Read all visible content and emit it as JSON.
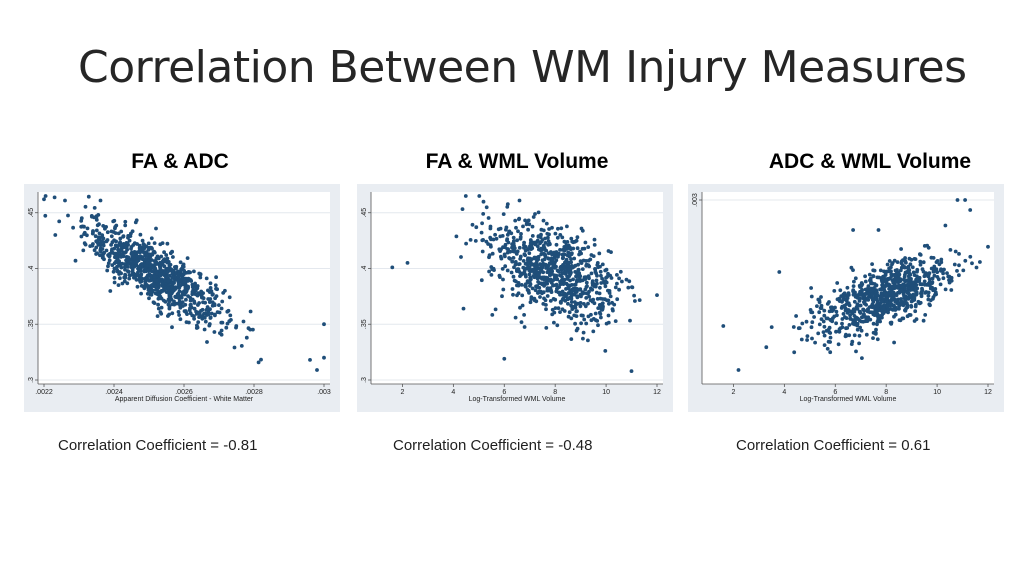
{
  "slide": {
    "title": "Correlation Between WM Injury Measures"
  },
  "panels": [
    {
      "title": "FA & ADC",
      "correlation_text": "Correlation Coefficient = -0.81"
    },
    {
      "title": "FA & WML Volume",
      "correlation_text": "Correlation Coefficient = -0.48"
    },
    {
      "title": "ADC & WML Volume",
      "correlation_text": "Correlation Coefficient = 0.61"
    }
  ],
  "colors": {
    "point": "#1f4e79",
    "panel_bg": "#e9edf2",
    "plot_bg": "#ffffff",
    "grid": "#e4e8ee"
  },
  "chart_data": [
    {
      "type": "scatter",
      "title": "FA & ADC",
      "xlabel": "Apparent Diffusion Coefficient - White Matter",
      "ylabel": "",
      "xlim": [
        0.0022,
        0.003
      ],
      "ylim": [
        0.3,
        0.465
      ],
      "xticks": [
        ".0022",
        ".0024",
        ".0026",
        ".0028",
        ".003"
      ],
      "xtick_values": [
        0.0022,
        0.0024,
        0.0026,
        0.0028,
        0.003
      ],
      "yticks": [
        ".3",
        ".35",
        ".4",
        ".45"
      ],
      "ytick_values": [
        0.3,
        0.35,
        0.4,
        0.45
      ],
      "grid": true,
      "correlation": -0.81,
      "n_points": 900,
      "x_mean": 0.00252,
      "x_sd": 0.0001,
      "y_mean": 0.395,
      "y_sd": 0.022,
      "outliers": [
        [
          0.00226,
          0.461
        ],
        [
          0.00229,
          0.407
        ],
        [
          0.00296,
          0.318
        ],
        [
          0.00302,
          0.32
        ],
        [
          0.00302,
          0.35
        ],
        [
          0.00298,
          0.309
        ]
      ]
    },
    {
      "type": "scatter",
      "title": "FA & WML Volume",
      "xlabel": "Log-Transformed WML Volume",
      "ylabel": "",
      "xlim": [
        1,
        12
      ],
      "ylim": [
        0.3,
        0.465
      ],
      "xticks": [
        "2",
        "4",
        "6",
        "8",
        "10",
        "12"
      ],
      "xtick_values": [
        2,
        4,
        6,
        8,
        10,
        12
      ],
      "yticks": [
        ".3",
        ".35",
        ".4",
        ".45"
      ],
      "ytick_values": [
        0.3,
        0.35,
        0.4,
        0.45
      ],
      "grid": true,
      "correlation": -0.48,
      "n_points": 800,
      "x_mean": 7.9,
      "x_sd": 1.3,
      "y_mean": 0.396,
      "y_sd": 0.023,
      "outliers": [
        [
          1.6,
          0.401
        ],
        [
          2.2,
          0.405
        ],
        [
          6.6,
          0.461
        ],
        [
          11.0,
          0.308
        ],
        [
          6.0,
          0.319
        ],
        [
          4.4,
          0.364
        ]
      ]
    },
    {
      "type": "scatter",
      "title": "ADC & WML Volume",
      "xlabel": "Log-Transformed WML Volume",
      "ylabel": "",
      "xlim": [
        1,
        12
      ],
      "ylim": [
        0.0021,
        0.00302
      ],
      "xticks": [
        "2",
        "4",
        "6",
        "8",
        "10",
        "12"
      ],
      "xtick_values": [
        2,
        4,
        6,
        8,
        10,
        12
      ],
      "yticks": [
        ".003"
      ],
      "ytick_values": [
        0.003
      ],
      "grid": true,
      "correlation": 0.61,
      "n_points": 800,
      "x_mean": 7.9,
      "x_sd": 1.3,
      "y_mean": 0.00251,
      "y_sd": 0.0001,
      "outliers": [
        [
          1.6,
          0.00237
        ],
        [
          2.2,
          0.00215
        ],
        [
          6.7,
          0.00285
        ],
        [
          7.7,
          0.00285
        ],
        [
          10.8,
          0.003
        ],
        [
          11.1,
          0.003
        ],
        [
          11.3,
          0.00295
        ],
        [
          3.8,
          0.00264
        ]
      ]
    }
  ]
}
